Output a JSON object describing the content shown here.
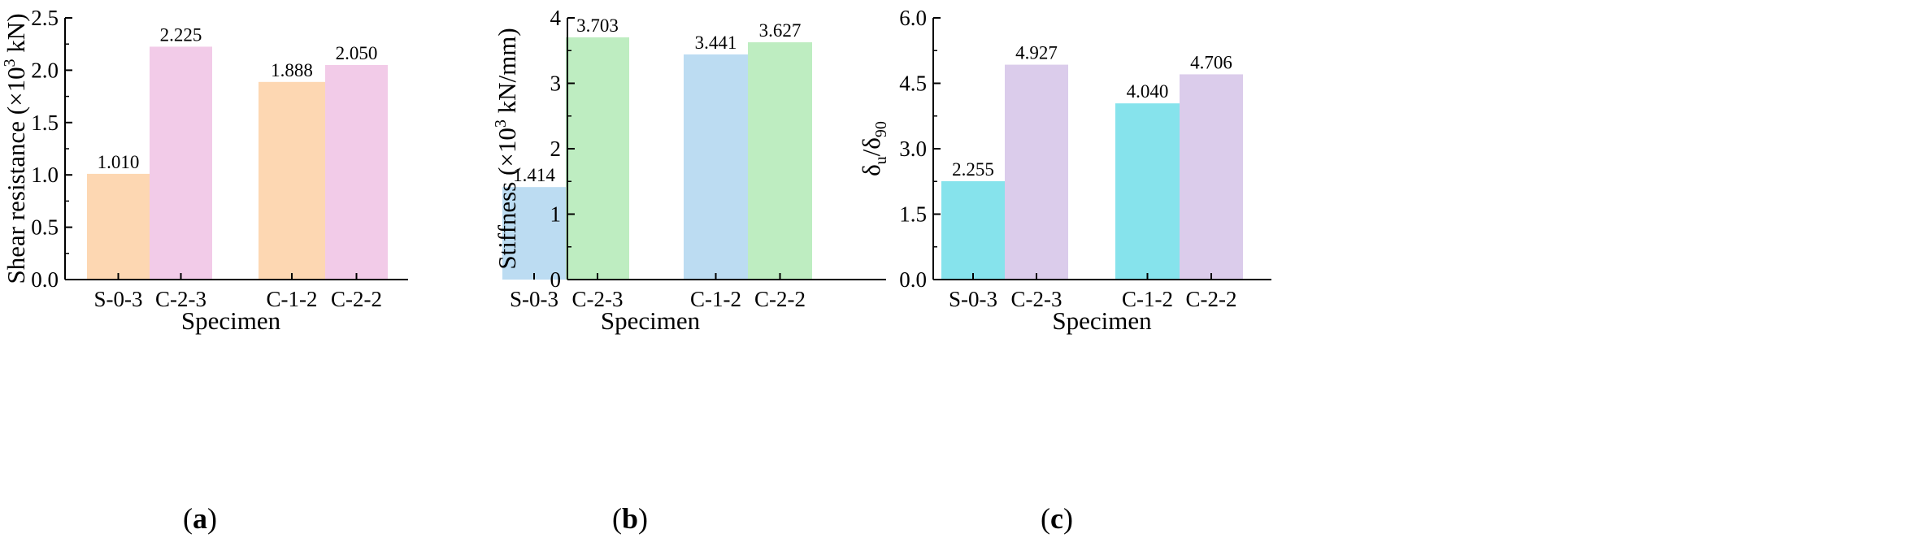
{
  "chart_data": [
    {
      "type": "bar",
      "panel_label": {
        "open": "(",
        "letter": "a",
        "close": ")"
      },
      "xlabel": "Specimen",
      "ylabel": {
        "pre": "Shear resistance (×10",
        "sup": "3",
        "post": " kN)"
      },
      "ylim": [
        0,
        2.5
      ],
      "yticks": [
        "0.0",
        "0.5",
        "1.0",
        "1.5",
        "2.0",
        "2.5"
      ],
      "categories": [
        "S-0-3",
        "C-2-3",
        "C-1-2",
        "C-2-2"
      ],
      "values": [
        1.01,
        2.225,
        1.888,
        2.05
      ],
      "value_labels": [
        "1.010",
        "2.225",
        "1.888",
        "2.050"
      ],
      "colors": [
        "#FDD7B2",
        "#F2CBE8",
        "#FDD7B2",
        "#F2CBE8"
      ],
      "grid": false
    },
    {
      "type": "bar",
      "panel_label": {
        "open": "(",
        "letter": "b",
        "close": ")"
      },
      "xlabel": "Specimen",
      "ylabel": {
        "pre": "Stiffness (×10",
        "sup": "3",
        "post": " kN/mm)"
      },
      "ylim": [
        0,
        4
      ],
      "yticks": [
        "0",
        "1",
        "2",
        "3",
        "4"
      ],
      "categories": [
        "S-0-3",
        "C-2-3",
        "C-1-2",
        "C-2-2"
      ],
      "values": [
        1.414,
        3.703,
        3.441,
        3.627
      ],
      "value_labels": [
        "1.414",
        "3.703",
        "3.441",
        "3.627"
      ],
      "colors": [
        "#BCDCF2",
        "#BEEDC1",
        "#BCDCF2",
        "#BEEDC1"
      ],
      "grid": false
    },
    {
      "type": "bar",
      "panel_label": {
        "open": "(",
        "letter": "c",
        "close": ")"
      },
      "xlabel": "Specimen",
      "ylabel": {
        "d1": "δ",
        "s1": "u",
        "sl": "/",
        "d2": "δ",
        "s2": "90"
      },
      "ylim": [
        0,
        6
      ],
      "yticks": [
        "0.0",
        "1.5",
        "3.0",
        "4.5",
        "6.0"
      ],
      "categories": [
        "S-0-3",
        "C-2-3",
        "C-1-2",
        "C-2-2"
      ],
      "values": [
        2.255,
        4.927,
        4.04,
        4.706
      ],
      "value_labels": [
        "2.255",
        "4.927",
        "4.040",
        "4.706"
      ],
      "colors": [
        "#86E3EC",
        "#DBCCEB",
        "#86E3EC",
        "#DBCCEB"
      ],
      "grid": false
    }
  ]
}
